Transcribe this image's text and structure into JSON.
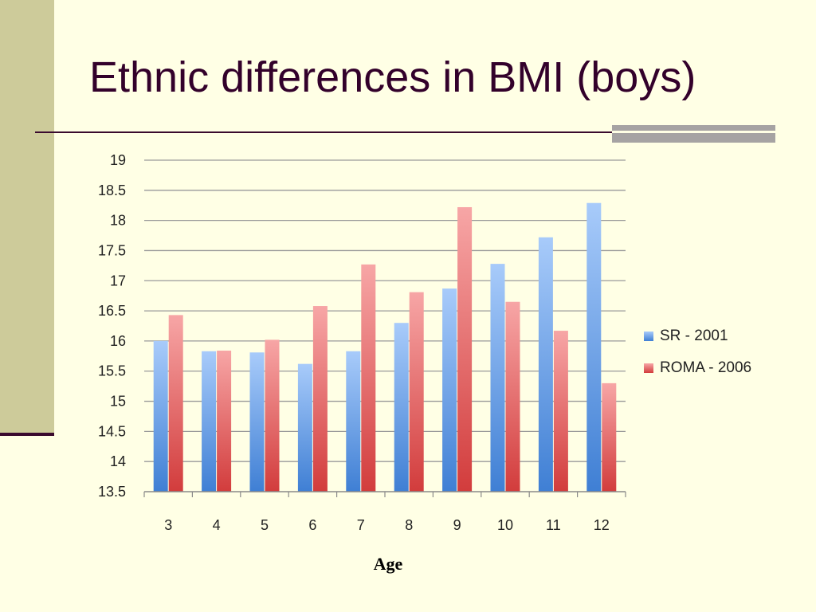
{
  "slide": {
    "title": "Ethnic differences in BMI (boys)"
  },
  "chart_data": {
    "type": "bar",
    "categories": [
      "3",
      "4",
      "5",
      "6",
      "7",
      "8",
      "9",
      "10",
      "11",
      "12"
    ],
    "series": [
      {
        "name": "SR - 2001",
        "values": [
          16.0,
          15.83,
          15.81,
          15.62,
          15.83,
          16.3,
          16.87,
          17.28,
          17.72,
          18.29
        ],
        "color": "#6D9FE6"
      },
      {
        "name": "ROMA - 2006",
        "values": [
          16.43,
          15.84,
          16.02,
          16.58,
          17.27,
          16.81,
          18.22,
          16.65,
          16.17,
          15.3
        ],
        "color": "#E46A6A"
      }
    ],
    "xlabel": "Age",
    "ylabel": "",
    "ylim": [
      13.5,
      19
    ],
    "yticks": [
      "13.5",
      "14",
      "14.5",
      "15",
      "15.5",
      "16",
      "16.5",
      "17",
      "17.5",
      "18",
      "18.5",
      "19"
    ],
    "grid": true,
    "legend_position": "right"
  }
}
